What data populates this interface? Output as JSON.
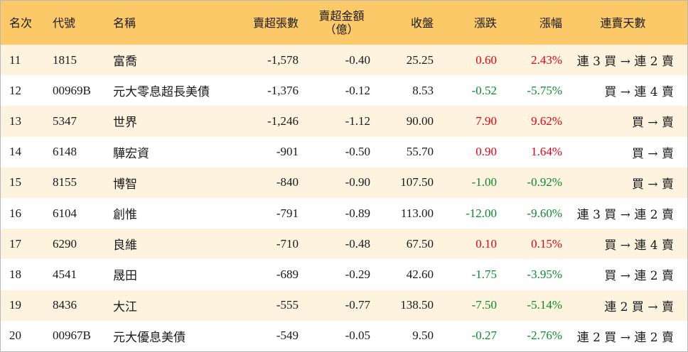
{
  "headers": {
    "rank": "名次",
    "code": "代號",
    "name": "名稱",
    "volume": "賣超張數",
    "amount_line1": "賣超金額",
    "amount_line2": "（億）",
    "close": "收盤",
    "change": "漲跌",
    "pct": "漲幅",
    "days": "連賣天數"
  },
  "rows": [
    {
      "rank": "11",
      "code": "1815",
      "name": "富喬",
      "volume": "-1,578",
      "amount": "-0.40",
      "close": "25.25",
      "change": "0.60",
      "pct": "2.43%",
      "dir": "up",
      "days": "連 3 買 → 連 2 賣"
    },
    {
      "rank": "12",
      "code": "00969B",
      "name": "元大零息超長美債",
      "volume": "-1,376",
      "amount": "-0.12",
      "close": "8.53",
      "change": "-0.52",
      "pct": "-5.75%",
      "dir": "down",
      "days": "買 → 連 4 賣"
    },
    {
      "rank": "13",
      "code": "5347",
      "name": "世界",
      "volume": "-1,246",
      "amount": "-1.12",
      "close": "90.00",
      "change": "7.90",
      "pct": "9.62%",
      "dir": "up",
      "days": "買 → 賣"
    },
    {
      "rank": "14",
      "code": "6148",
      "name": "驊宏資",
      "volume": "-901",
      "amount": "-0.50",
      "close": "55.70",
      "change": "0.90",
      "pct": "1.64%",
      "dir": "up",
      "days": "買 → 賣"
    },
    {
      "rank": "15",
      "code": "8155",
      "name": "博智",
      "volume": "-840",
      "amount": "-0.90",
      "close": "107.50",
      "change": "-1.00",
      "pct": "-0.92%",
      "dir": "down",
      "days": "買 → 賣"
    },
    {
      "rank": "16",
      "code": "6104",
      "name": "創惟",
      "volume": "-791",
      "amount": "-0.89",
      "close": "113.00",
      "change": "-12.00",
      "pct": "-9.60%",
      "dir": "down",
      "days": "連 3 買 → 連 2 賣"
    },
    {
      "rank": "17",
      "code": "6290",
      "name": "良維",
      "volume": "-710",
      "amount": "-0.48",
      "close": "67.50",
      "change": "0.10",
      "pct": "0.15%",
      "dir": "up",
      "days": "買 → 連 4 賣"
    },
    {
      "rank": "18",
      "code": "4541",
      "name": "晟田",
      "volume": "-689",
      "amount": "-0.29",
      "close": "42.60",
      "change": "-1.75",
      "pct": "-3.95%",
      "dir": "down",
      "days": "買 → 連 2 賣"
    },
    {
      "rank": "19",
      "code": "8436",
      "name": "大江",
      "volume": "-555",
      "amount": "-0.77",
      "close": "138.50",
      "change": "-7.50",
      "pct": "-5.14%",
      "dir": "down",
      "days": "連 2 買 → 賣"
    },
    {
      "rank": "20",
      "code": "00967B",
      "name": "元大優息美債",
      "volume": "-549",
      "amount": "-0.05",
      "close": "9.50",
      "change": "-0.27",
      "pct": "-2.76%",
      "dir": "down",
      "days": "連 2 買 → 連 2 賣"
    }
  ],
  "colors": {
    "header_bg": "#fcc969",
    "odd_row_bg": "#fdf3df",
    "even_row_bg": "#ffffff",
    "up": "#e60012",
    "down": "#0a8a2e"
  }
}
